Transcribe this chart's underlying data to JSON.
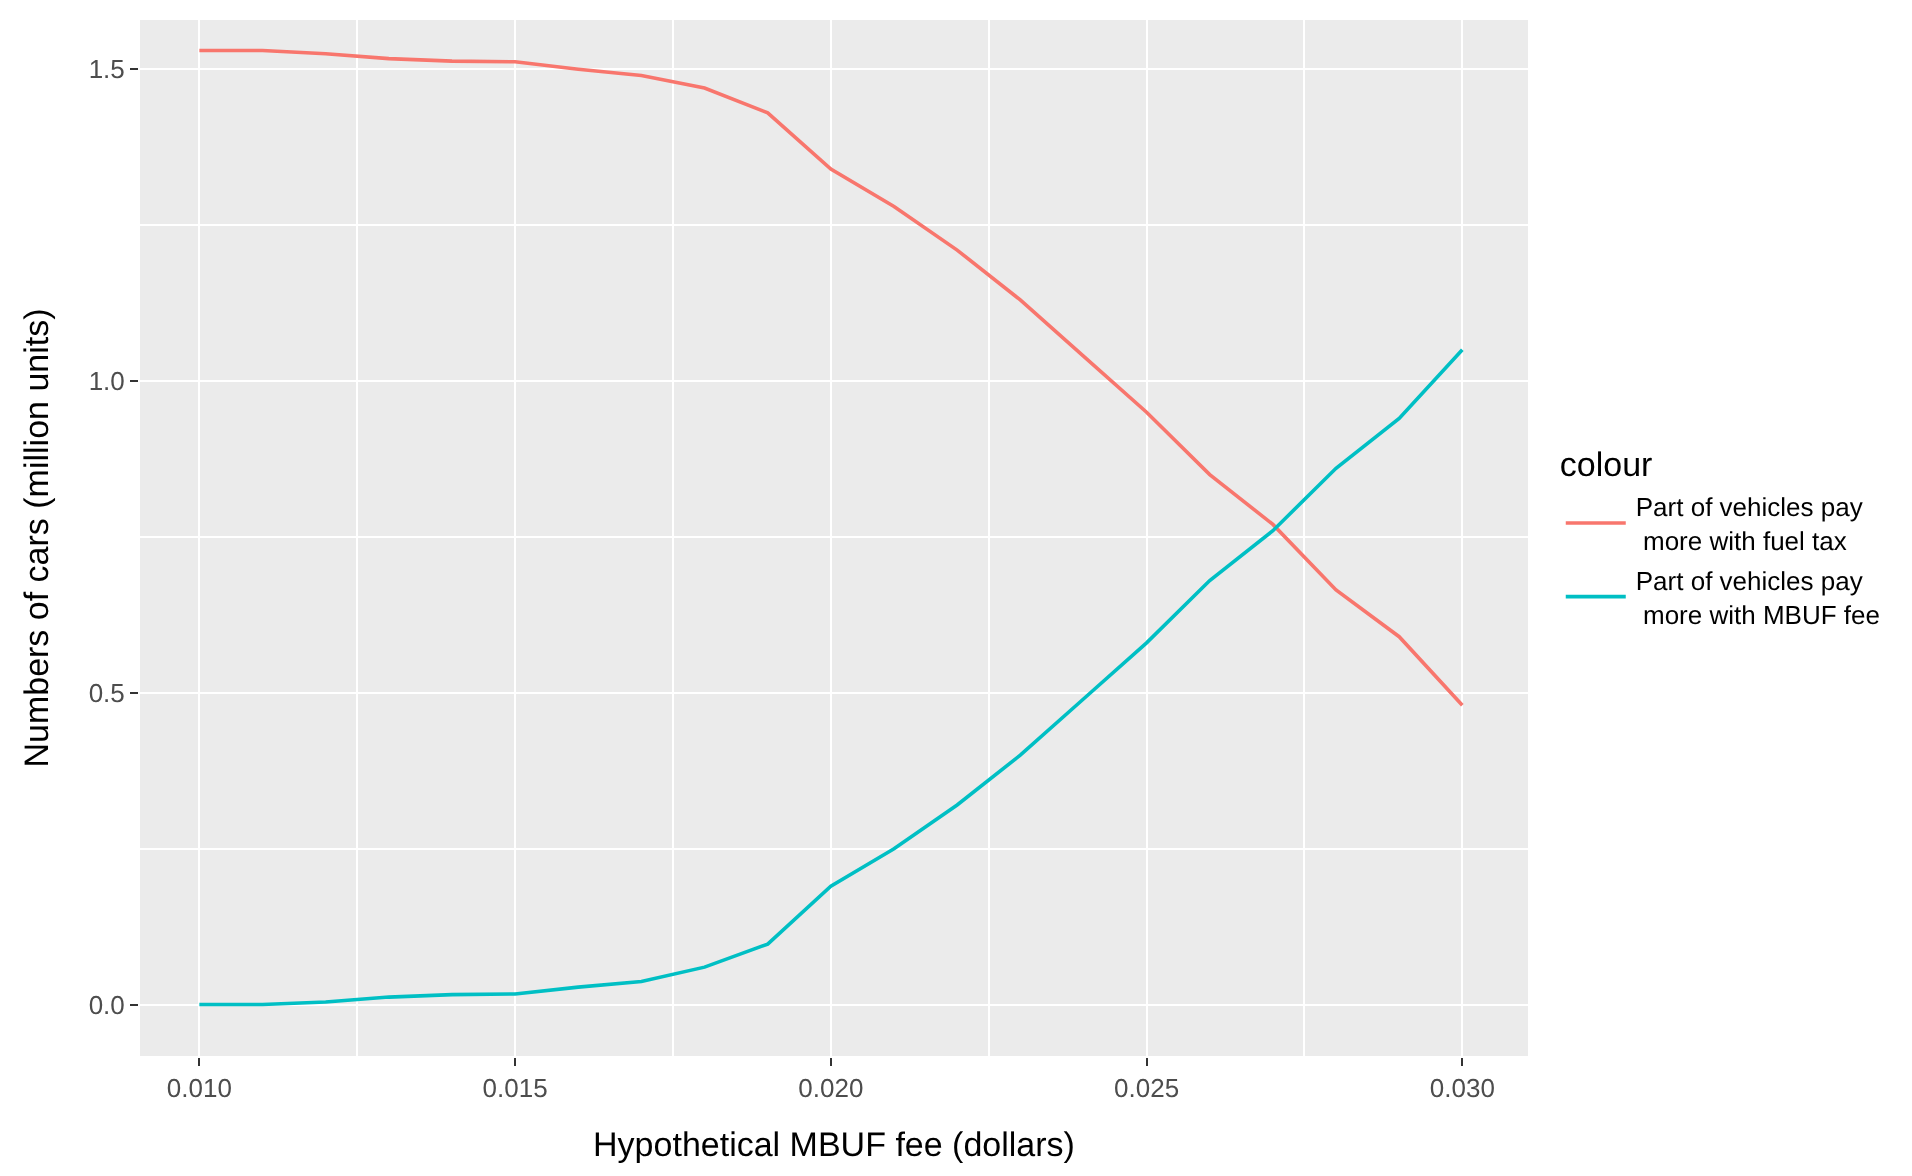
{
  "chart_data": {
    "type": "line",
    "xlabel": "Hypothetical MBUF fee (dollars)",
    "ylabel": "Numbers of cars (million units)",
    "legend_title": "colour",
    "x": [
      0.01,
      0.011,
      0.012,
      0.013,
      0.014,
      0.015,
      0.016,
      0.017,
      0.018,
      0.019,
      0.02,
      0.021,
      0.022,
      0.023,
      0.024,
      0.025,
      0.026,
      0.027,
      0.028,
      0.029,
      0.03
    ],
    "series": [
      {
        "name": "Part of vehicles pay\n more with fuel tax",
        "color": "#f8766d",
        "values": [
          1.53,
          1.53,
          1.525,
          1.517,
          1.513,
          1.512,
          1.5,
          1.49,
          1.47,
          1.43,
          1.34,
          1.28,
          1.21,
          1.13,
          1.04,
          0.95,
          0.85,
          0.77,
          0.665,
          0.59,
          0.48
        ]
      },
      {
        "name": "Part of vehicles pay\n more with MBUF fee",
        "color": "#00bfc4",
        "values": [
          0,
          0,
          0.004,
          0.012,
          0.016,
          0.017,
          0.028,
          0.037,
          0.06,
          0.097,
          0.19,
          0.25,
          0.32,
          0.4,
          0.49,
          0.58,
          0.68,
          0.76,
          0.86,
          0.94,
          1.05
        ]
      }
    ],
    "xlim": [
      0.00906,
      0.03104
    ],
    "xticks": [
      {
        "value": 0.01,
        "label": "0.010"
      },
      {
        "value": 0.015,
        "label": "0.015"
      },
      {
        "value": 0.02,
        "label": "0.020"
      },
      {
        "value": 0.025,
        "label": "0.025"
      },
      {
        "value": 0.03,
        "label": "0.030"
      }
    ],
    "ylim": [
      -0.0825,
      1.579
    ],
    "yticks": [
      {
        "value": 0,
        "label": "0.0"
      },
      {
        "value": 0.5,
        "label": "0.5"
      },
      {
        "value": 1.0,
        "label": "1.0"
      },
      {
        "value": 1.5,
        "label": "1.5"
      }
    ],
    "grid": true,
    "legend": "right",
    "marker": "none",
    "line_style": "solid"
  }
}
